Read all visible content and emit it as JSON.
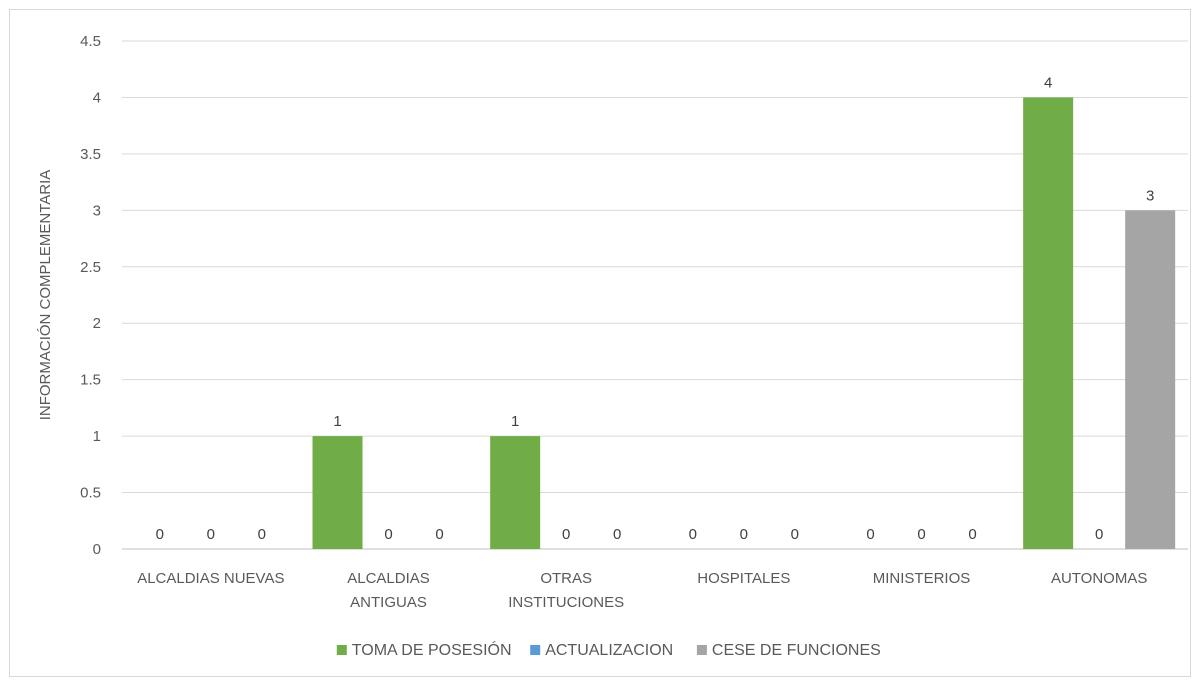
{
  "chart_data": {
    "type": "bar",
    "ylabel": "INFORMACIÓN COMPLEMENTARIA",
    "xlabel": "",
    "ylim": [
      0,
      4.5
    ],
    "yticks": [
      "0",
      "0.5",
      "1",
      "1.5",
      "2",
      "2.5",
      "3",
      "3.5",
      "4",
      "4.5"
    ],
    "categories": [
      [
        "ALCALDIAS NUEVAS"
      ],
      [
        "ALCALDIAS",
        "ANTIGUAS"
      ],
      [
        "OTRAS",
        "INSTITUCIONES"
      ],
      [
        "HOSPITALES"
      ],
      [
        "MINISTERIOS"
      ],
      [
        "AUTONOMAS"
      ]
    ],
    "series": [
      {
        "name": "TOMA DE POSESIÓN",
        "color": "#70ad47",
        "values": [
          0,
          1,
          1,
          0,
          0,
          4
        ]
      },
      {
        "name": "ACTUALIZACION",
        "color": "#5b9bd5",
        "values": [
          0,
          0,
          0,
          0,
          0,
          0
        ]
      },
      {
        "name": "CESE DE FUNCIONES",
        "color": "#a5a5a5",
        "values": [
          0,
          0,
          0,
          0,
          0,
          3
        ]
      }
    ],
    "grid": true,
    "legend_position": "bottom",
    "data_labels": true
  }
}
